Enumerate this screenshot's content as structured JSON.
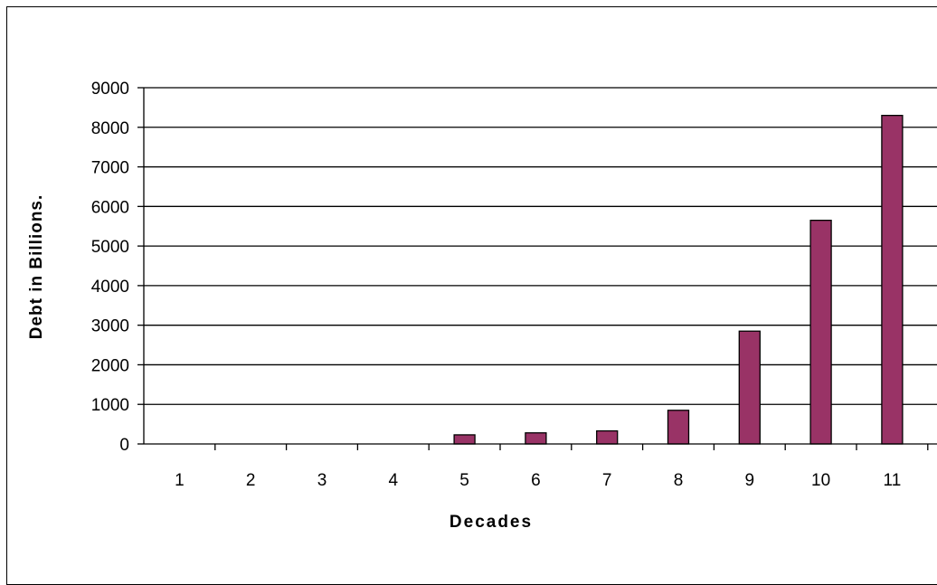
{
  "chart_data": {
    "type": "bar",
    "title": "",
    "xlabel": "Decades",
    "ylabel": "Debt in Billions.",
    "categories": [
      "1",
      "2",
      "3",
      "4",
      "5",
      "6",
      "7",
      "8",
      "9",
      "10",
      "11"
    ],
    "values": [
      0,
      0,
      0,
      0,
      230,
      280,
      330,
      850,
      2850,
      5650,
      8300
    ],
    "ylim": [
      0,
      9000
    ],
    "yticks": [
      "0",
      "1000",
      "2000",
      "3000",
      "4000",
      "5000",
      "6000",
      "7000",
      "8000",
      "9000"
    ],
    "grid": true,
    "legend": "none",
    "bar_color": "#993366"
  }
}
